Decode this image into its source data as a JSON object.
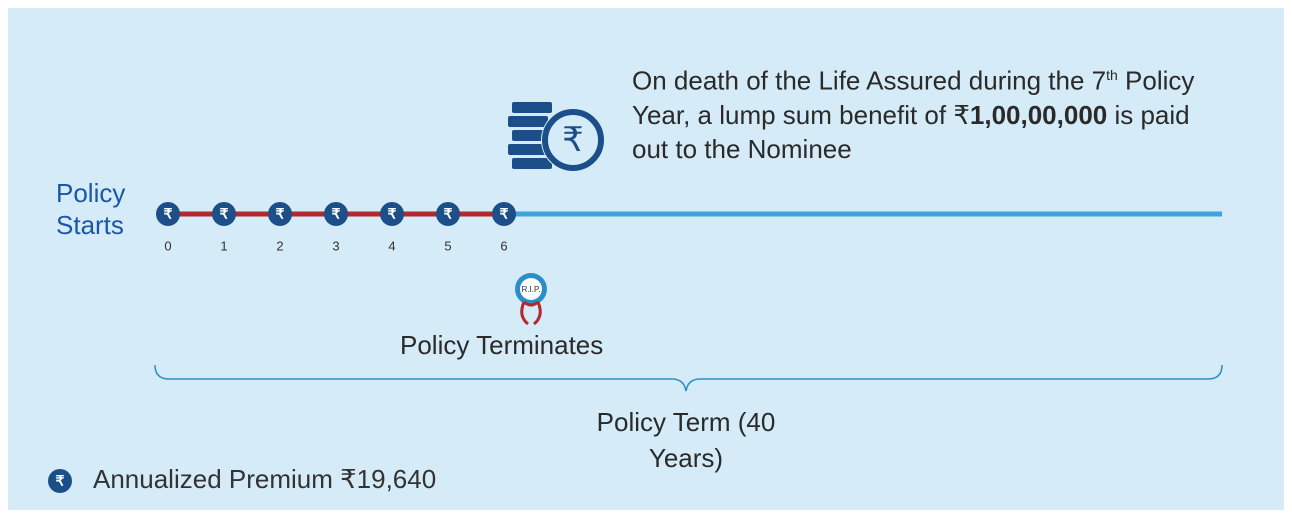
{
  "timeline": {
    "start_label": [
      "Policy",
      "Starts"
    ],
    "symbol": "₹",
    "years": [
      0,
      1,
      2,
      3,
      4,
      5,
      6
    ]
  },
  "benefit": {
    "parts": [
      "On death of the Life Assured during the ",
      "7",
      "th",
      " Policy Year, a lump sum benefit of ",
      "₹",
      "1,00,00,000",
      " is paid out to the Nominee"
    ]
  },
  "termination": {
    "badge": "R.I.P.",
    "label": "Policy Terminates"
  },
  "term": {
    "label": "Policy Term (40 Years)"
  },
  "legend": {
    "symbol": "₹",
    "label": "Annualized Premium ₹19,640"
  }
}
